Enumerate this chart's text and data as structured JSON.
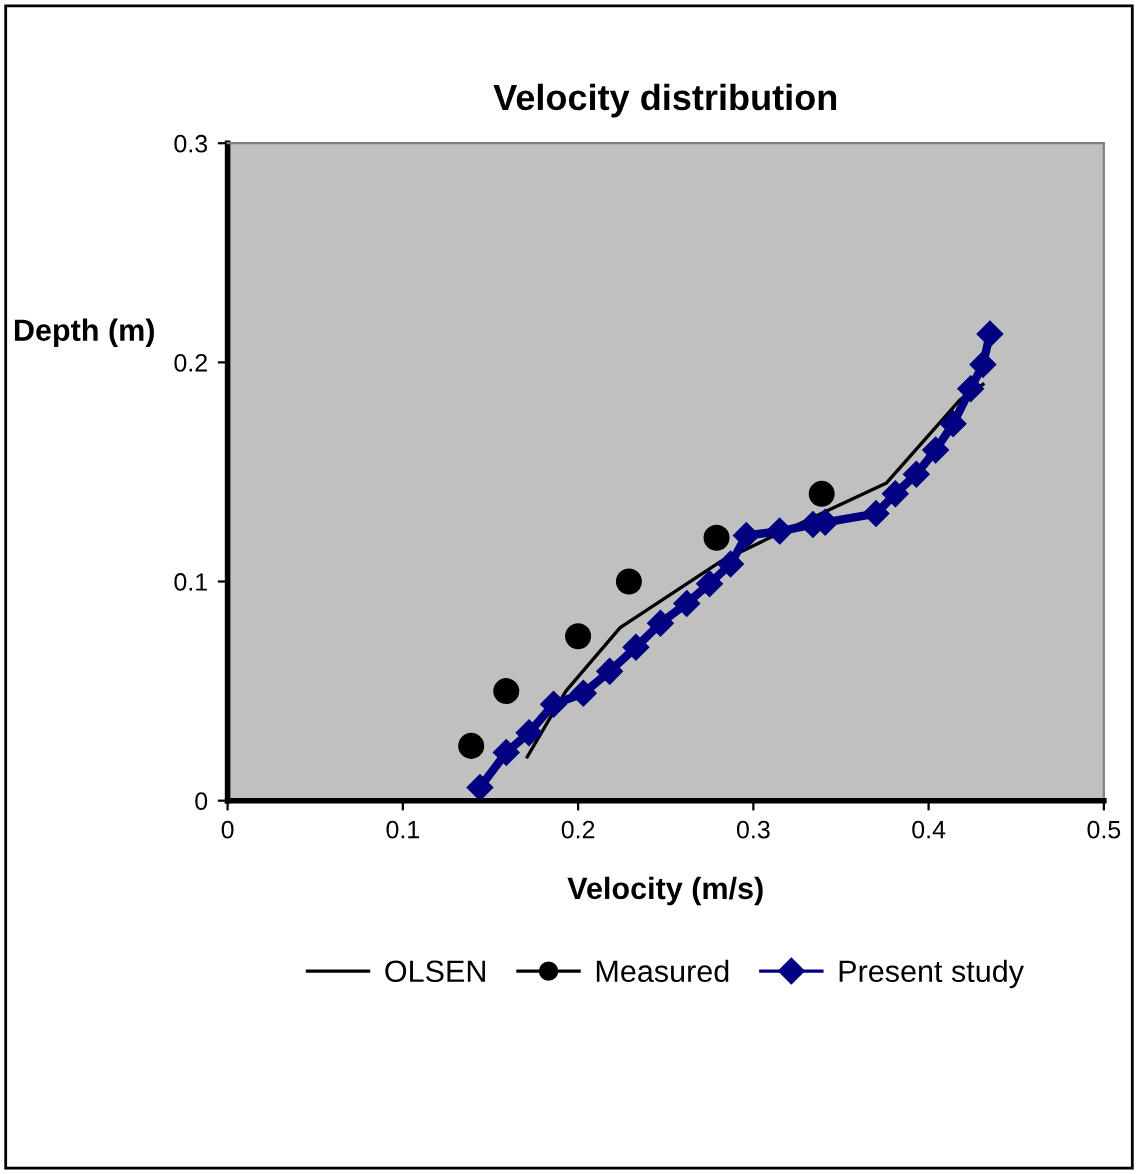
{
  "chart_data": {
    "type": "line",
    "title": "Velocity distribution",
    "xlabel": "Velocity (m/s)",
    "ylabel": "Depth (m)",
    "xlim": [
      0,
      0.5
    ],
    "xticks": [
      0,
      0.1,
      0.2,
      0.3,
      0.4,
      0.5
    ],
    "ylim": [
      0,
      0.3
    ],
    "yticks": [
      0,
      0.1,
      0.2,
      0.3
    ],
    "grid": false,
    "legend": "bottom",
    "series": [
      {
        "name": "OLSEN",
        "color": "#000000",
        "marker": "none",
        "line_style": "solid",
        "x": [
          0.171,
          0.193,
          0.224,
          0.281,
          0.312,
          0.376,
          0.418,
          0.431
        ],
        "values": [
          0.02,
          0.05,
          0.079,
          0.109,
          0.121,
          0.145,
          0.183,
          0.19
        ]
      },
      {
        "name": "Measured",
        "type": "scatter",
        "color": "#000000",
        "marker": "circle",
        "x": [
          0.139,
          0.159,
          0.2,
          0.229,
          0.279,
          0.339
        ],
        "values": [
          0.025,
          0.05,
          0.075,
          0.1,
          0.12,
          0.14
        ]
      },
      {
        "name": "Present study",
        "color": "#000080",
        "marker": "diamond",
        "line_style": "solid",
        "x": [
          0.144,
          0.159,
          0.172,
          0.186,
          0.203,
          0.218,
          0.233,
          0.247,
          0.262,
          0.275,
          0.287,
          0.296,
          0.315,
          0.334,
          0.341,
          0.37,
          0.381,
          0.393,
          0.404,
          0.414,
          0.424,
          0.431,
          0.435
        ],
        "values": [
          0.006,
          0.022,
          0.031,
          0.044,
          0.049,
          0.059,
          0.07,
          0.081,
          0.09,
          0.099,
          0.108,
          0.121,
          0.123,
          0.126,
          0.127,
          0.131,
          0.14,
          0.149,
          0.16,
          0.172,
          0.188,
          0.199,
          0.213
        ]
      }
    ]
  }
}
